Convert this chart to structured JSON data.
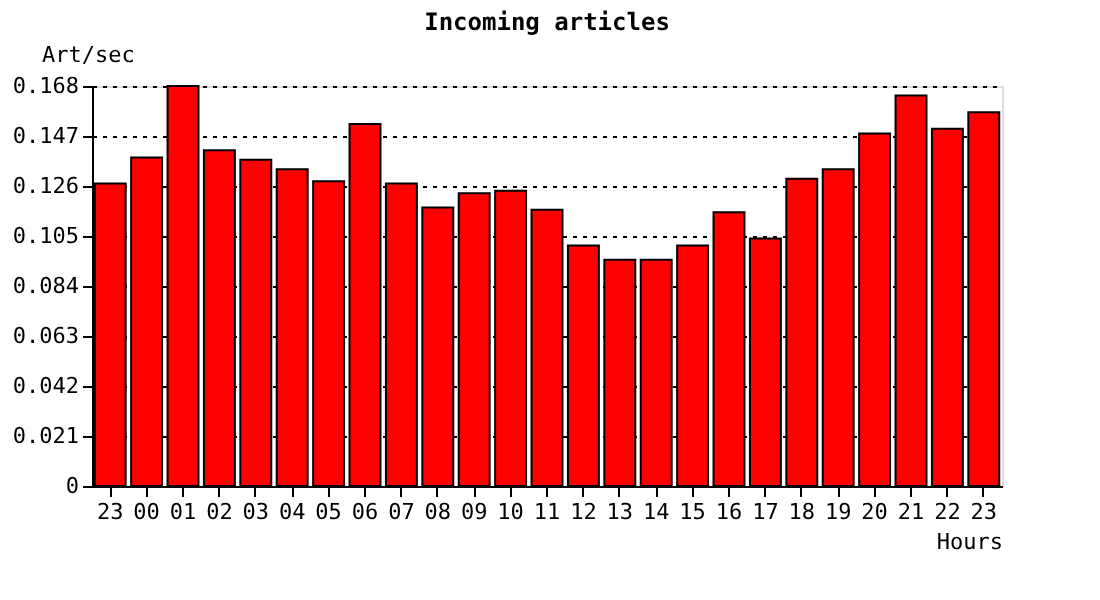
{
  "chart_data": {
    "type": "bar",
    "title": "Incoming articles",
    "ylabel": "Art/sec",
    "xlabel": "Hours",
    "categories": [
      "23",
      "00",
      "01",
      "02",
      "03",
      "04",
      "05",
      "06",
      "07",
      "08",
      "09",
      "10",
      "11",
      "12",
      "13",
      "14",
      "15",
      "16",
      "17",
      "18",
      "19",
      "20",
      "21",
      "22",
      "23"
    ],
    "series": [
      {
        "color": "#ff0000",
        "values": [
          0.127,
          0.138,
          0.168,
          0.141,
          0.137,
          0.133,
          0.128,
          0.152,
          0.127,
          0.117,
          0.123,
          0.124,
          0.116,
          0.101,
          0.095,
          0.095,
          0.101,
          0.115,
          0.104,
          0.129,
          0.133,
          0.148,
          0.164,
          0.15,
          0.157
        ]
      }
    ],
    "ylim": [
      0,
      0.168
    ],
    "yticks": [
      0,
      0.021,
      0.042,
      0.063,
      0.084,
      0.105,
      0.126,
      0.147,
      0.168
    ],
    "grid": "y",
    "line_style": "dotted"
  }
}
